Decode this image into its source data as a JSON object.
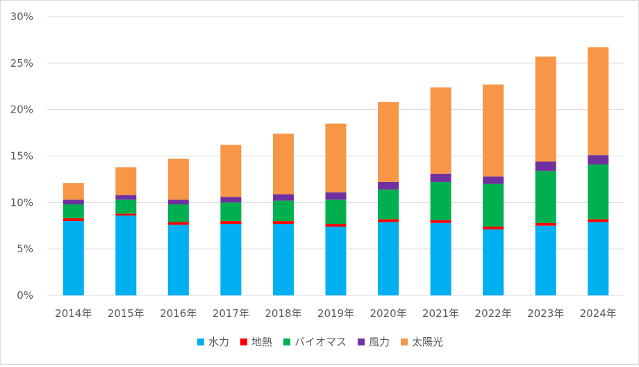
{
  "chart_data": {
    "type": "bar",
    "stacked": true,
    "categories": [
      "2014年",
      "2015年",
      "2016年",
      "2017年",
      "2018年",
      "2019年",
      "2020年",
      "2021年",
      "2022年",
      "2023年",
      "2024年"
    ],
    "ylim": [
      0,
      30
    ],
    "yticks": [
      "0%",
      "5%",
      "10%",
      "15%",
      "20%",
      "25%",
      "30%"
    ],
    "grid": true,
    "legend_position": "bottom",
    "series": [
      {
        "name": "水力",
        "color": "#00b0f0",
        "values": [
          8.0,
          8.6,
          7.6,
          7.7,
          7.7,
          7.4,
          7.9,
          7.8,
          7.1,
          7.5,
          7.9
        ]
      },
      {
        "name": "地熱",
        "color": "#ff0000",
        "values": [
          0.3,
          0.2,
          0.3,
          0.3,
          0.3,
          0.3,
          0.3,
          0.3,
          0.3,
          0.3,
          0.3
        ]
      },
      {
        "name": "バイオマス",
        "color": "#00b050",
        "values": [
          1.5,
          1.5,
          1.9,
          2.0,
          2.2,
          2.6,
          3.2,
          4.1,
          4.6,
          5.6,
          5.9
        ]
      },
      {
        "name": "風力",
        "color": "#7030a0",
        "values": [
          0.5,
          0.5,
          0.5,
          0.6,
          0.7,
          0.8,
          0.8,
          0.9,
          0.8,
          1.0,
          1.0
        ]
      },
      {
        "name": "太陽光",
        "color": "#f79646",
        "values": [
          1.8,
          3.0,
          4.4,
          5.6,
          6.5,
          7.4,
          8.6,
          9.3,
          9.9,
          11.3,
          11.6
        ]
      }
    ]
  }
}
